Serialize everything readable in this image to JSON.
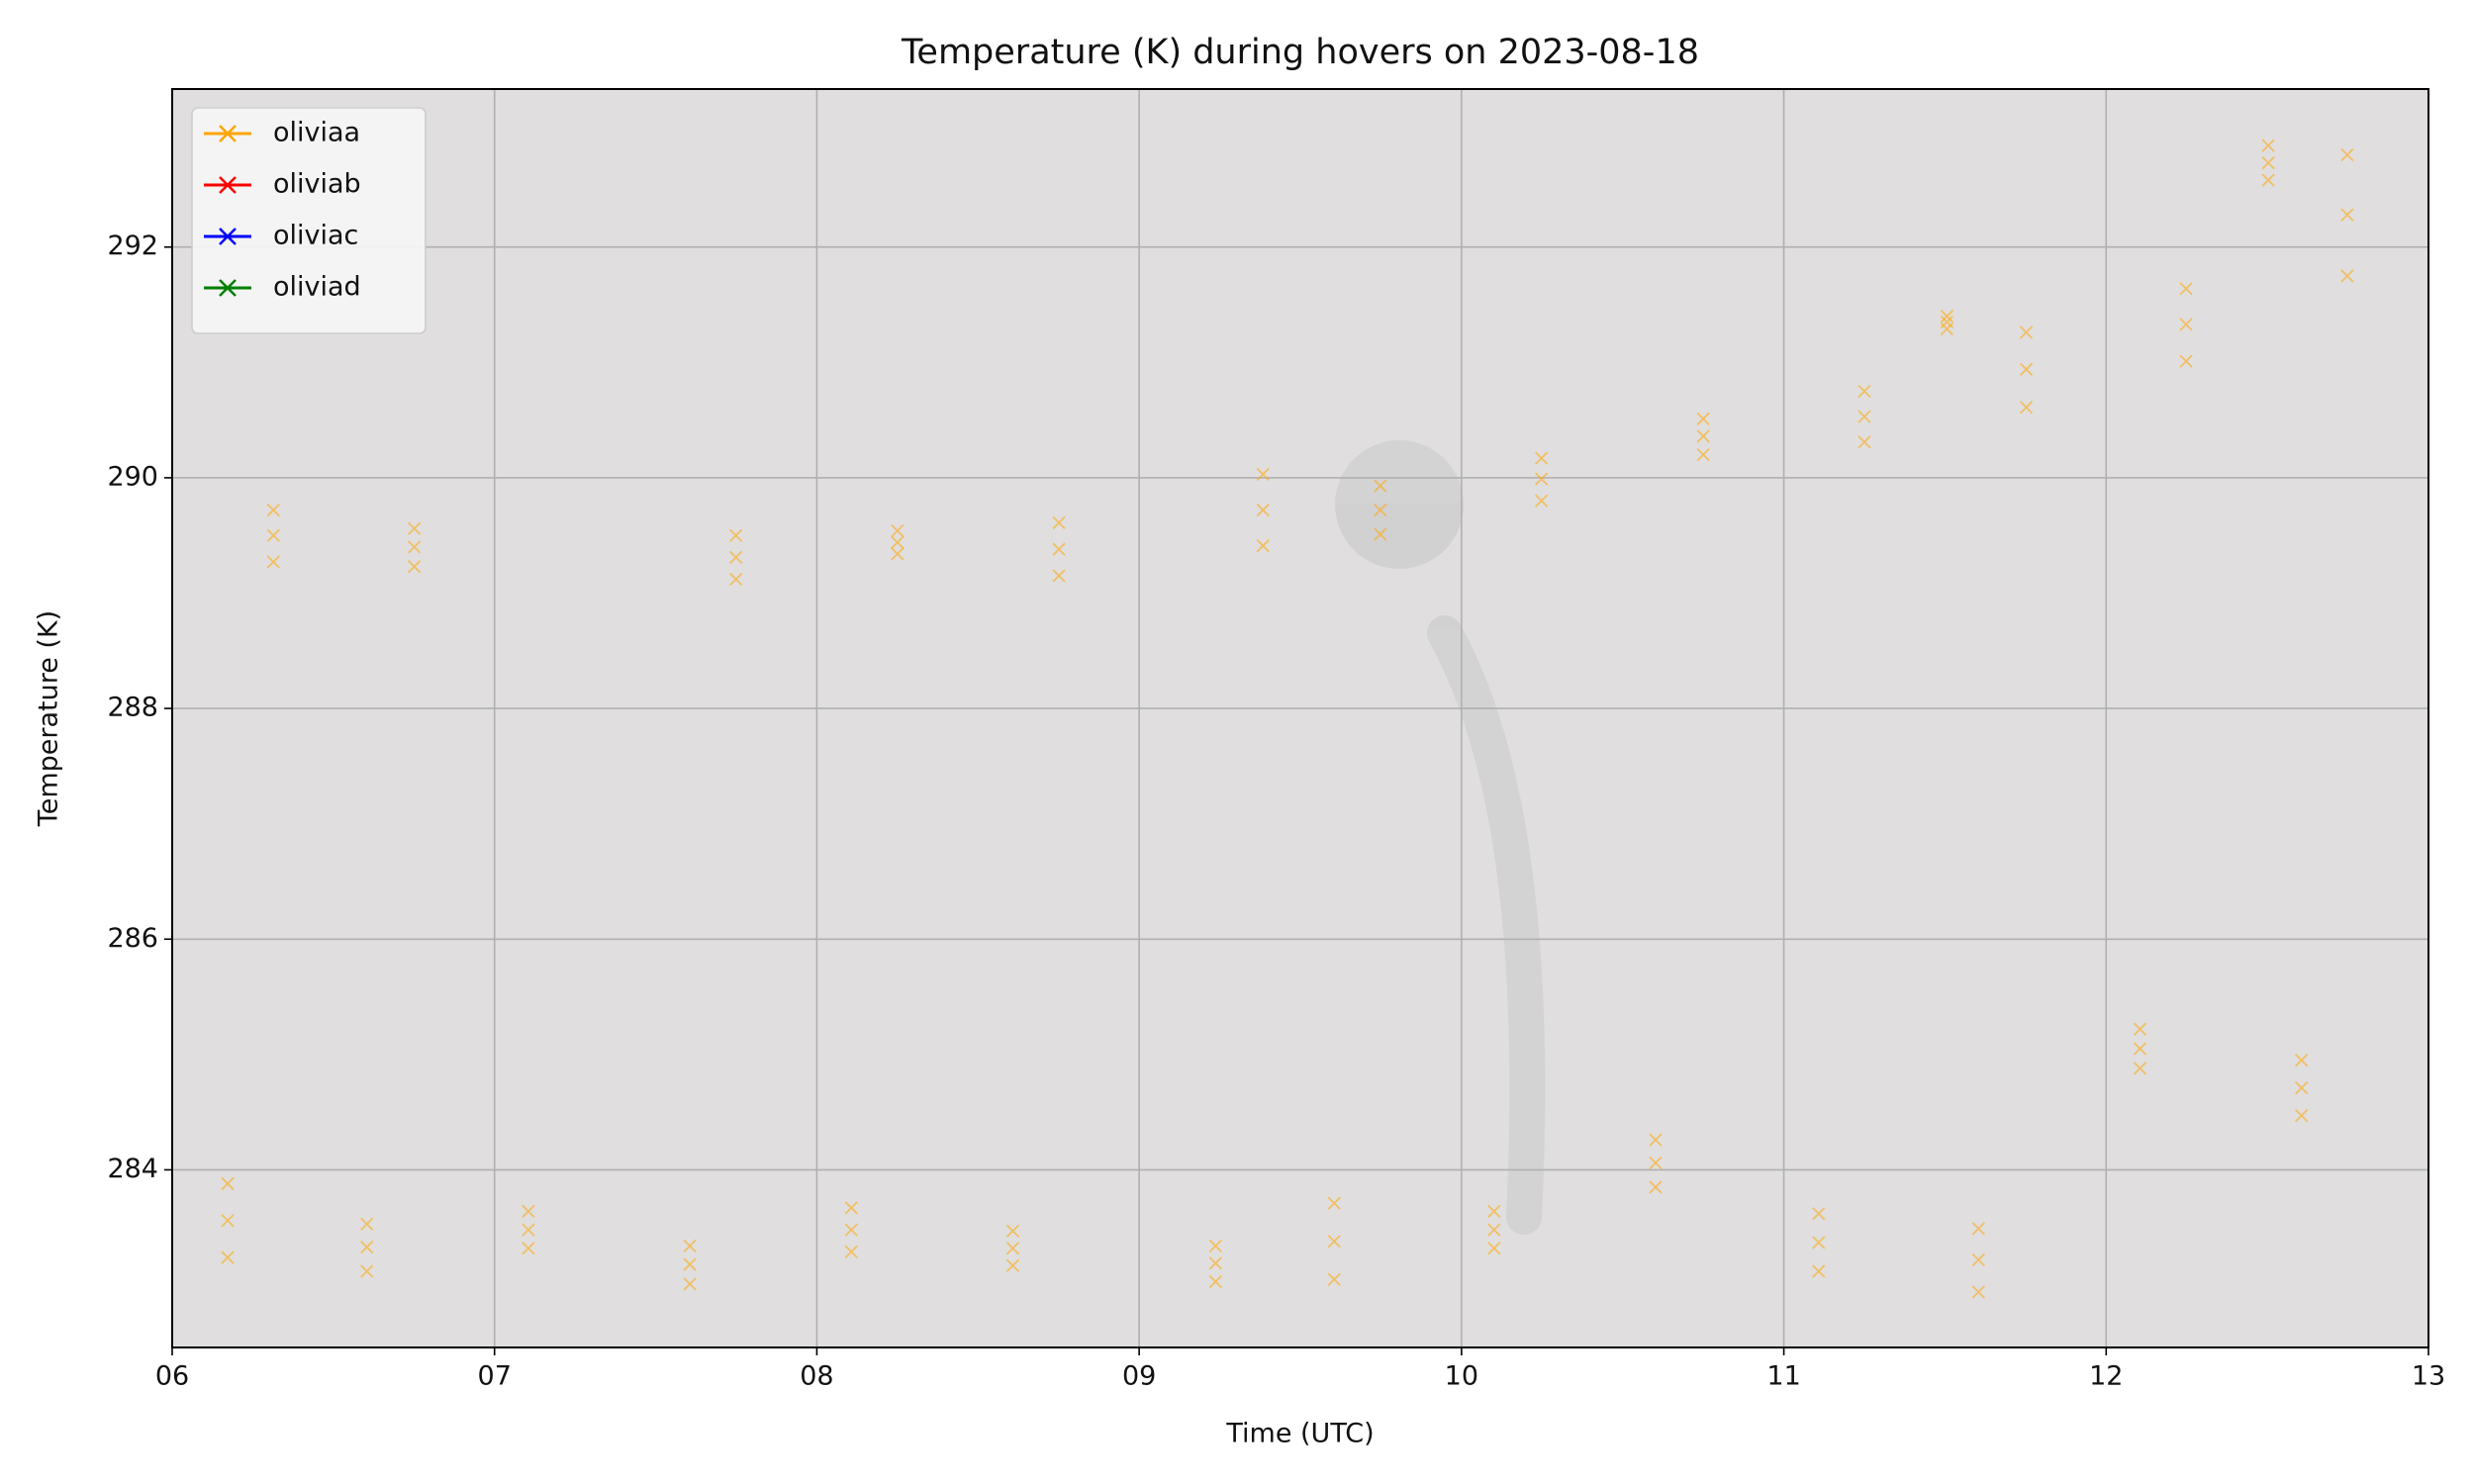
{
  "chart_data": {
    "type": "scatter",
    "title": "Temperature (K) during hovers on 2023-08-18",
    "x_label": "Time (UTC)",
    "y_label": "Temperature (K)",
    "xlim": [
      6,
      13
    ],
    "xticks": [
      {
        "value": 6,
        "label": "06"
      },
      {
        "value": 7,
        "label": "07"
      },
      {
        "value": 8,
        "label": "08"
      },
      {
        "value": 9,
        "label": "09"
      },
      10,
      11,
      12,
      13
    ],
    "ylim": [
      282.46,
      293.37
    ],
    "yticks": [
      284,
      286,
      288,
      290,
      292
    ],
    "grid": true,
    "legend": "upper left",
    "marker": "x",
    "x": [
      6.172,
      6.172,
      6.172,
      6.314,
      6.314,
      6.314,
      6.604,
      6.604,
      6.604,
      6.751,
      6.751,
      6.751,
      7.105,
      7.105,
      7.105,
      7.606,
      7.606,
      7.606,
      7.749,
      7.749,
      7.749,
      8.107,
      8.107,
      8.107,
      8.25,
      8.25,
      8.25,
      8.608,
      8.608,
      8.608,
      8.751,
      8.751,
      8.751,
      9.237,
      9.237,
      9.237,
      9.384,
      9.384,
      9.384,
      9.605,
      9.605,
      9.605,
      9.748,
      9.748,
      9.748,
      10.101,
      10.101,
      10.101,
      10.248,
      10.248,
      10.248,
      10.602,
      10.602,
      10.602,
      10.75,
      10.75,
      10.75,
      11.108,
      11.108,
      11.108,
      11.25,
      11.25,
      11.25,
      11.506,
      11.506,
      11.506,
      11.604,
      11.604,
      11.604,
      11.752,
      11.752,
      11.752,
      12.105,
      12.105,
      12.105,
      12.248,
      12.248,
      12.248,
      12.503,
      12.503,
      12.503,
      12.606,
      12.606,
      12.606,
      12.748,
      12.748,
      12.748
    ],
    "series": [
      {
        "name": "oliviaa",
        "color": "#ffa500",
        "values": [
          283.24,
          283.56,
          283.88,
          289.27,
          289.5,
          289.72,
          283.12,
          283.33,
          283.53,
          289.23,
          289.4,
          289.56,
          283.32,
          283.48,
          283.64,
          283.01,
          283.18,
          283.34,
          289.12,
          289.31,
          289.5,
          283.29,
          283.48,
          283.67,
          289.34,
          289.44,
          289.54,
          283.17,
          283.32,
          283.47,
          289.15,
          289.38,
          289.61,
          283.03,
          283.19,
          283.34,
          289.41,
          289.72,
          290.03,
          283.05,
          283.38,
          283.71,
          289.51,
          289.72,
          289.93,
          283.32,
          283.48,
          283.64,
          289.8,
          289.99,
          290.17,
          283.85,
          284.06,
          284.26,
          290.2,
          290.36,
          290.51,
          283.12,
          283.37,
          283.62,
          290.31,
          290.53,
          290.75,
          291.29,
          291.35,
          291.4,
          282.94,
          283.22,
          283.49,
          290.61,
          290.94,
          291.26,
          284.88,
          285.05,
          285.22,
          291.01,
          291.33,
          291.64,
          292.58,
          292.73,
          292.88,
          284.47,
          284.71,
          284.95,
          291.75,
          292.28,
          292.8
        ]
      },
      {
        "name": "oliviab",
        "color": "#ff0000",
        "values": []
      },
      {
        "name": "oliviac",
        "color": "#0000ff",
        "values": []
      },
      {
        "name": "oliviad",
        "color": "#008000",
        "values": []
      }
    ]
  }
}
